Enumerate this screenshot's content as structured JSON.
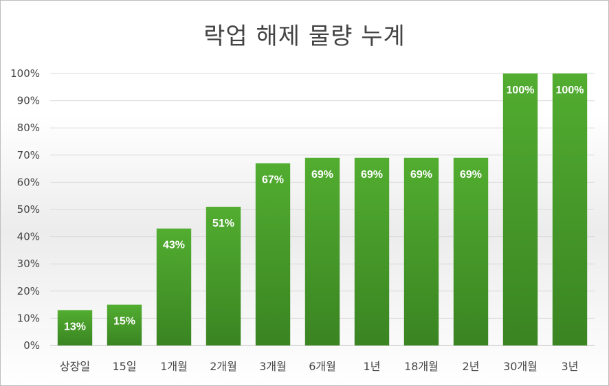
{
  "chart_data": {
    "type": "bar",
    "title": "락업 해제 물량 누계",
    "categories": [
      "상장일",
      "15일",
      "1개월",
      "2개월",
      "3개월",
      "6개월",
      "1년",
      "18개월",
      "2년",
      "30개월",
      "3년"
    ],
    "values": [
      13,
      15,
      43,
      51,
      67,
      69,
      69,
      69,
      69,
      100,
      100
    ],
    "data_labels": [
      "13%",
      "15%",
      "43%",
      "51%",
      "67%",
      "69%",
      "69%",
      "69%",
      "69%",
      "100%",
      "100%"
    ],
    "yticks": [
      "0%",
      "10%",
      "20%",
      "30%",
      "40%",
      "50%",
      "60%",
      "70%",
      "80%",
      "90%",
      "100%"
    ],
    "ylim": [
      0,
      100
    ],
    "xlabel": "",
    "ylabel": "",
    "grid": true,
    "legend": "none",
    "bar_color": "#4a9d2a"
  }
}
